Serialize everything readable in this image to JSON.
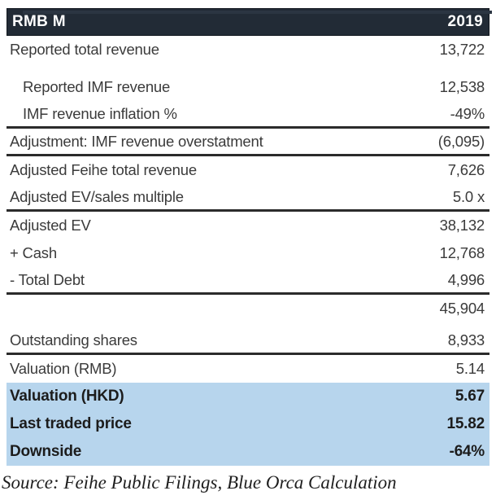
{
  "header": {
    "label": "RMB M",
    "year": "2019"
  },
  "table": {
    "columns": [
      "RMB M",
      "2019"
    ],
    "rows": [
      {
        "label": "Reported total revenue",
        "value": "13,722"
      },
      {
        "label": "Reported IMF revenue",
        "value": "12,538"
      },
      {
        "label": "IMF revenue inflation %",
        "value": "-49%"
      },
      {
        "label": "Adjustment: IMF revenue overstatment",
        "value": "(6,095)"
      },
      {
        "label": "Adjusted Feihe total revenue",
        "value": "7,626"
      },
      {
        "label": "Adjusted EV/sales multiple",
        "value": "5.0 x"
      },
      {
        "label": "Adjusted EV",
        "value": "38,132"
      },
      {
        "label": "+ Cash",
        "value": "12,768"
      },
      {
        "label": "- Total Debt",
        "value": "4,996"
      },
      {
        "label": "",
        "value": "45,904"
      },
      {
        "label": "Outstanding shares",
        "value": "8,933"
      },
      {
        "label": "Valuation (RMB)",
        "value": "5.14"
      },
      {
        "label": "Valuation (HKD)",
        "value": "5.67"
      },
      {
        "label": "Last traded price",
        "value": "15.82"
      },
      {
        "label": "Downside",
        "value": "-64%"
      }
    ]
  },
  "source": "Source: Feihe Public Filings, Blue Orca Calculation",
  "colors": {
    "header_bg": "#222b36",
    "header_text": "#ffffff",
    "body_text": "#3b3b3b",
    "rule": "#2b2b2b",
    "highlight_bg": "#b7d5ed",
    "top_line": "#2b3542"
  }
}
